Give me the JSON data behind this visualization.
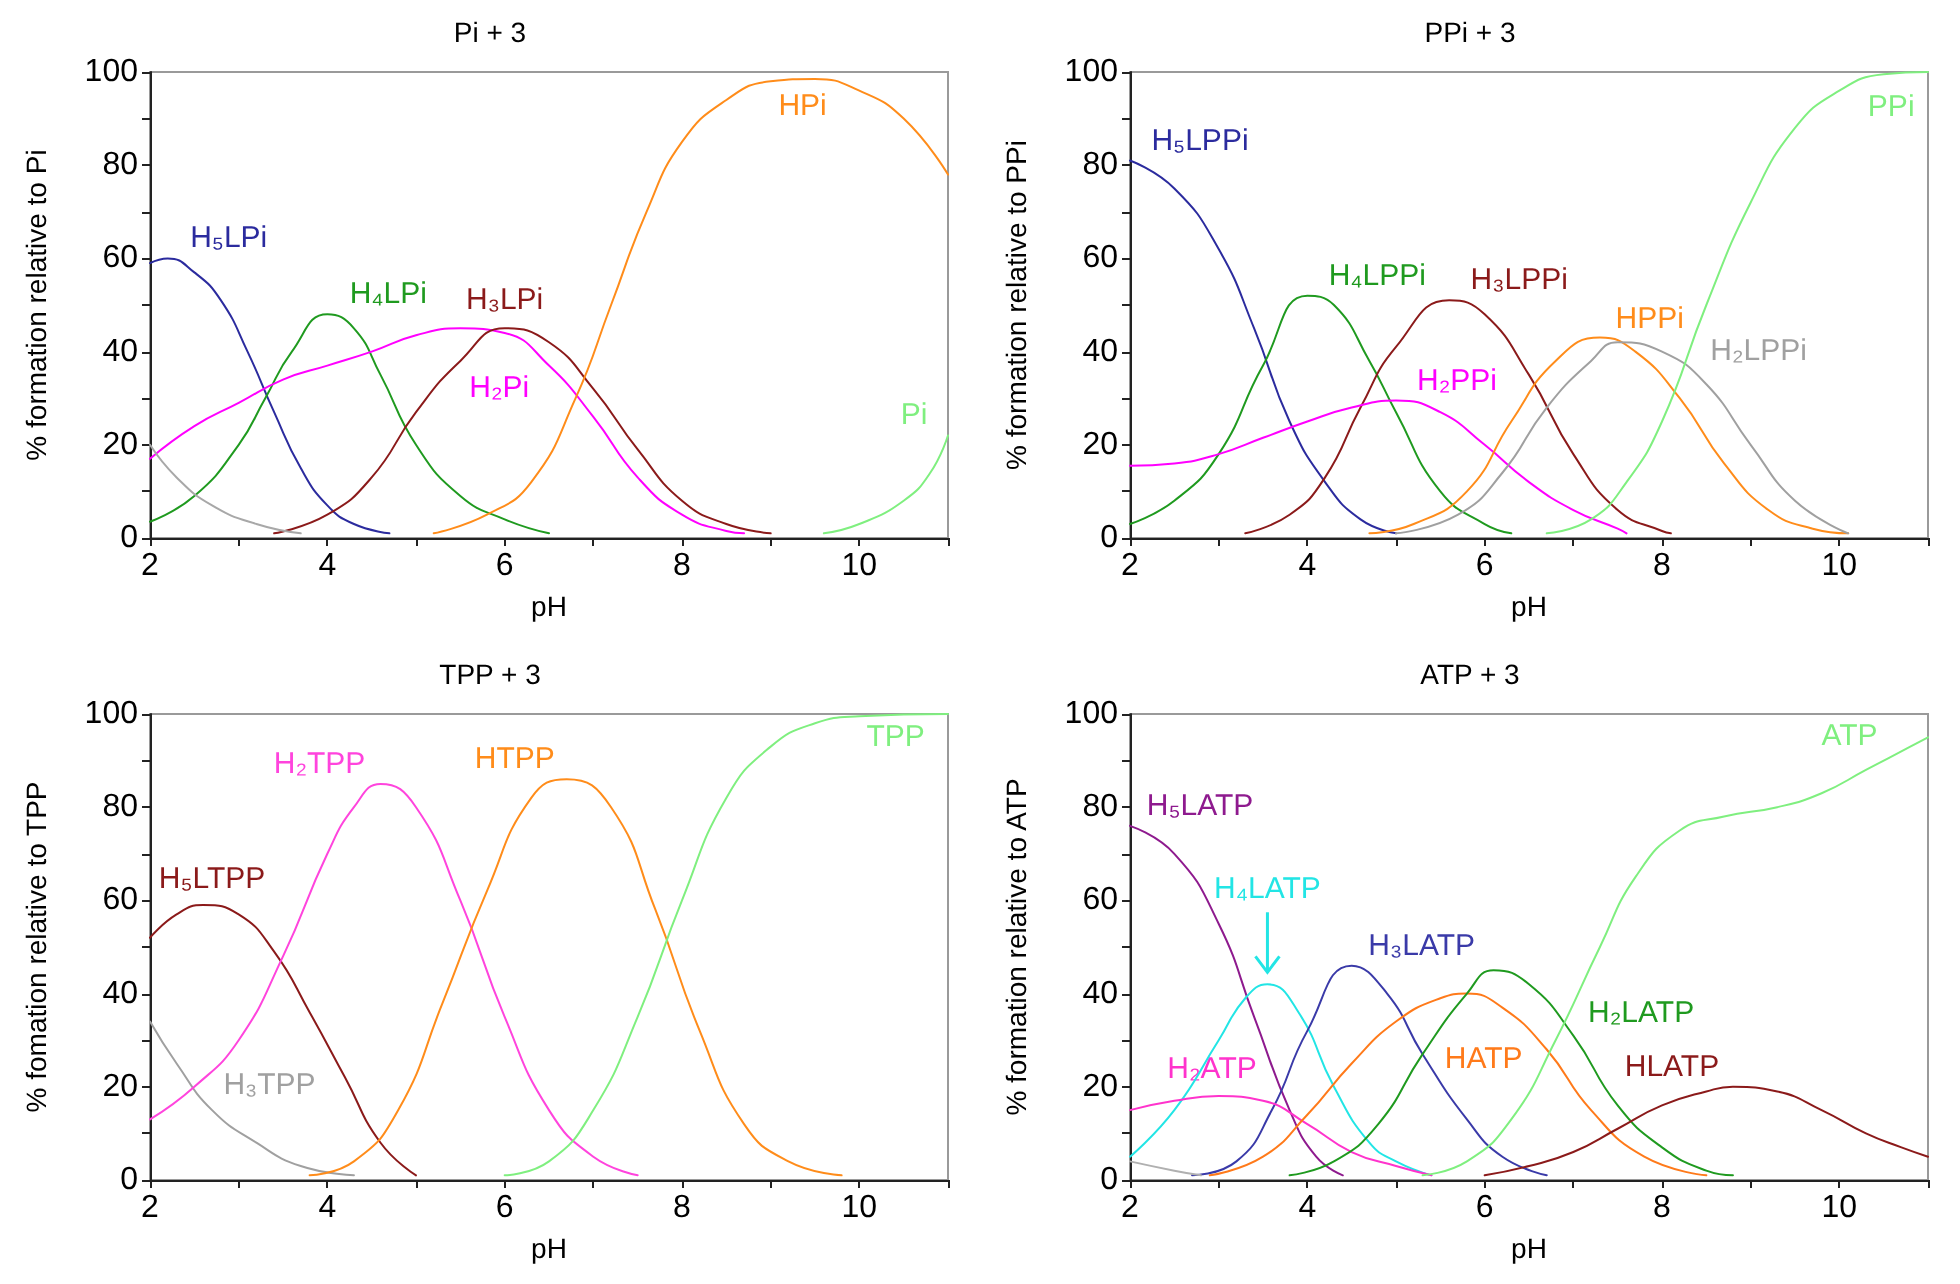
{
  "chart_data": [
    {
      "type": "line",
      "title": "Pi + 3",
      "xlabel": "pH",
      "ylabel": "% formation relative to Pi",
      "xlim": [
        2,
        11
      ],
      "ylim": [
        0,
        100
      ],
      "xticks": [
        2,
        {
          "value": 3,
          "label": null
        },
        4,
        {
          "value": 5,
          "label": null
        },
        6,
        {
          "value": 7,
          "label": null
        },
        8,
        {
          "value": 9,
          "label": null
        },
        10,
        {
          "value": 11,
          "label": null
        }
      ],
      "yticks": [
        0,
        {
          "value": 10,
          "label": null
        },
        20,
        {
          "value": 30,
          "label": null
        },
        40,
        {
          "value": 50,
          "label": null
        },
        60,
        {
          "value": 70,
          "label": null
        },
        80,
        {
          "value": 90,
          "label": null
        },
        100
      ],
      "grid": false,
      "legend": false,
      "marker": "none",
      "line_style": "solid",
      "series": [
        {
          "name": "H₅LPi",
          "color": "#2b2b9e",
          "x": [
            2,
            2.2,
            2.5,
            2.8,
            3.1,
            3.4,
            3.7,
            4.0,
            4.3,
            4.7
          ],
          "values": [
            59,
            60,
            57,
            51,
            40,
            27,
            15,
            7,
            3,
            1
          ]
        },
        {
          "name": "H₄LPi",
          "color": "#1f9a1f",
          "x": [
            2,
            2.5,
            3,
            3.3,
            3.6,
            4,
            4.3,
            4.6,
            5,
            5.5,
            6,
            6.5
          ],
          "values": [
            3.5,
            9,
            20,
            30,
            40,
            48,
            45,
            35,
            20,
            9,
            4,
            1
          ]
        },
        {
          "name": "H₂Pi",
          "color": "#ff00ff",
          "x": [
            2,
            2.5,
            3,
            3.5,
            4,
            4.5,
            5,
            5.5,
            6,
            6.5,
            7,
            7.5,
            8,
            8.5,
            8.7
          ],
          "values": [
            17,
            24,
            29,
            34,
            37,
            40,
            43.5,
            45,
            44,
            37,
            26,
            13,
            5,
            1.5,
            1
          ]
        },
        {
          "name": "H₃LPi",
          "color": "#8b1a1a",
          "x": [
            3.4,
            4,
            4.5,
            5,
            5.5,
            6,
            6.5,
            7,
            7.5,
            8,
            8.5,
            9
          ],
          "values": [
            1,
            5,
            13,
            27,
            38,
            45,
            42,
            32,
            19,
            8,
            3,
            1
          ]
        },
        {
          "name": "HPi",
          "color": "#ff8c1a",
          "x": [
            5.2,
            5.8,
            6.3,
            6.8,
            7.2,
            7.6,
            8,
            8.5,
            9,
            9.5,
            10,
            10.5,
            11
          ],
          "values": [
            1,
            5,
            12,
            30,
            50,
            70,
            85,
            94,
            98,
            98.5,
            96,
            90,
            78
          ]
        },
        {
          "name": "Pi",
          "color": "#7fef7f",
          "x": [
            9.6,
            10,
            10.5,
            10.8,
            11
          ],
          "values": [
            1,
            3,
            8,
            14,
            22
          ]
        },
        {
          "color": "#a8a8a8",
          "x": [
            2,
            2.3,
            2.7,
            3.2,
            3.7
          ],
          "values": [
            20,
            13,
            7,
            3,
            1
          ]
        }
      ]
    },
    {
      "type": "line",
      "title": "PPi + 3",
      "xlabel": "pH",
      "ylabel": "% formation relative to PPi",
      "xlim": [
        2,
        11
      ],
      "ylim": [
        0,
        100
      ],
      "xticks": [
        2,
        {
          "value": 3,
          "label": null
        },
        4,
        {
          "value": 5,
          "label": null
        },
        6,
        {
          "value": 7,
          "label": null
        },
        8,
        {
          "value": 9,
          "label": null
        },
        10,
        {
          "value": 11,
          "label": null
        }
      ],
      "yticks": [
        0,
        {
          "value": 10,
          "label": null
        },
        20,
        {
          "value": 30,
          "label": null
        },
        40,
        {
          "value": 50,
          "label": null
        },
        60,
        {
          "value": 70,
          "label": null
        },
        80,
        {
          "value": 90,
          "label": null
        },
        100
      ],
      "grid": false,
      "legend": false,
      "marker": "none",
      "line_style": "solid",
      "series": [
        {
          "name": "H₅LPPi",
          "color": "#2b2b9e",
          "x": [
            2,
            2.5,
            3,
            3.4,
            3.8,
            4.2,
            4.6,
            5
          ],
          "values": [
            81,
            75,
            62,
            45,
            25,
            12,
            4,
            1
          ]
        },
        {
          "name": "H₄LPPi",
          "color": "#1f9a1f",
          "x": [
            2,
            2.5,
            3,
            3.5,
            4,
            4.3,
            4.7,
            5,
            5.5,
            6,
            6.3
          ],
          "values": [
            3,
            8,
            18,
            37,
            52,
            50,
            38,
            27,
            10,
            3,
            1
          ]
        },
        {
          "name": "H₃LPPi",
          "color": "#8b1a1a",
          "x": [
            3.3,
            3.8,
            4.2,
            4.6,
            5,
            5.6,
            6,
            6.5,
            7,
            7.5,
            8,
            8.1
          ],
          "values": [
            1,
            5,
            13,
            28,
            41,
            51,
            48,
            35,
            18,
            6,
            1.5,
            1
          ]
        },
        {
          "name": "H₂PPi",
          "color": "#ff00ff",
          "x": [
            2,
            2.5,
            3,
            3.5,
            4,
            4.5,
            5,
            5.5,
            6,
            6.5,
            7,
            7.5,
            7.6
          ],
          "values": [
            15.5,
            16,
            18,
            21.5,
            25,
            28,
            29.5,
            27,
            20,
            12,
            6,
            2,
            1
          ]
        },
        {
          "name": "HPPi",
          "color": "#ff8c1a",
          "x": [
            4.7,
            5.2,
            5.8,
            6.3,
            6.8,
            7.3,
            7.7,
            8.2,
            8.7,
            9.2,
            9.7,
            10.1
          ],
          "values": [
            1,
            3,
            10,
            25,
            38,
            43,
            40,
            30,
            16,
            6,
            2,
            1
          ]
        },
        {
          "name": "H₂LPPi",
          "color": "#a0a0a0",
          "x": [
            5,
            5.7,
            6.2,
            6.7,
            7.2,
            7.5,
            8,
            8.5,
            9,
            9.5,
            10.1
          ],
          "values": [
            1,
            5,
            14,
            28,
            38,
            42,
            40,
            33,
            20,
            8,
            1
          ]
        },
        {
          "name": "PPi",
          "color": "#7fef7f",
          "x": [
            6.7,
            7.2,
            7.6,
            8,
            8.5,
            9,
            9.5,
            10,
            10.5,
            11
          ],
          "values": [
            1,
            4,
            12,
            25,
            50,
            72,
            88,
            96,
            99.5,
            100
          ]
        }
      ]
    },
    {
      "type": "line",
      "title": "TPP + 3",
      "xlabel": "pH",
      "ylabel": "% fomation relative to TPP",
      "xlim": [
        2,
        11
      ],
      "ylim": [
        0,
        100
      ],
      "xticks": [
        2,
        {
          "value": 3,
          "label": null
        },
        4,
        {
          "value": 5,
          "label": null
        },
        6,
        {
          "value": 7,
          "label": null
        },
        8,
        {
          "value": 9,
          "label": null
        },
        10,
        {
          "value": 11,
          "label": null
        }
      ],
      "yticks": [
        0,
        {
          "value": 10,
          "label": null
        },
        20,
        {
          "value": 30,
          "label": null
        },
        40,
        {
          "value": 50,
          "label": null
        },
        60,
        {
          "value": 70,
          "label": null
        },
        80,
        {
          "value": 90,
          "label": null
        },
        100
      ],
      "grid": false,
      "legend": false,
      "marker": "none",
      "line_style": "solid",
      "series": [
        {
          "name": "H₅LTPP",
          "color": "#8b1a1a",
          "x": [
            2,
            2.3,
            2.6,
            3,
            3.4,
            3.8,
            4.2,
            4.6,
            5
          ],
          "values": [
            52,
            57,
            59,
            57,
            49,
            36,
            22,
            8,
            1
          ]
        },
        {
          "name": "H₃TPP",
          "color": "#a0a0a0",
          "x": [
            2,
            2.3,
            2.7,
            3.2,
            3.7,
            4.3
          ],
          "values": [
            34,
            25,
            15,
            8,
            3,
            1
          ]
        },
        {
          "name": "H₂TPP",
          "color": "#ff44dd",
          "x": [
            2,
            2.5,
            3,
            3.5,
            4,
            4.3,
            4.6,
            5,
            5.5,
            6,
            6.5,
            7,
            7.5
          ],
          "values": [
            13,
            20,
            30,
            48,
            70,
            80,
            85,
            80,
            60,
            35,
            15,
            5,
            1
          ]
        },
        {
          "name": "HTPP",
          "color": "#ff8c1a",
          "x": [
            3.8,
            4.3,
            4.8,
            5.3,
            5.8,
            6.3,
            6.7,
            7.2,
            7.7,
            8.2,
            8.7,
            9.2,
            9.8
          ],
          "values": [
            1,
            4,
            15,
            38,
            62,
            82,
            86,
            80,
            58,
            32,
            12,
            4,
            1
          ]
        },
        {
          "name": "TPP",
          "color": "#7fef7f",
          "x": [
            6,
            6.5,
            7,
            7.5,
            8,
            8.5,
            9,
            9.5,
            10,
            11
          ],
          "values": [
            1,
            4,
            15,
            35,
            60,
            82,
            93,
            98,
            99.5,
            100
          ]
        }
      ]
    },
    {
      "type": "line",
      "title": "ATP + 3",
      "xlabel": "pH",
      "ylabel": "% formation relative to ATP",
      "xlim": [
        2,
        11
      ],
      "ylim": [
        0,
        100
      ],
      "xticks": [
        2,
        {
          "value": 3,
          "label": null
        },
        4,
        {
          "value": 5,
          "label": null
        },
        6,
        {
          "value": 7,
          "label": null
        },
        8,
        {
          "value": 9,
          "label": null
        },
        10,
        {
          "value": 11,
          "label": null
        }
      ],
      "yticks": [
        0,
        {
          "value": 10,
          "label": null
        },
        20,
        {
          "value": 30,
          "label": null
        },
        40,
        {
          "value": 50,
          "label": null
        },
        60,
        {
          "value": 70,
          "label": null
        },
        80,
        {
          "value": 90,
          "label": null
        },
        100
      ],
      "grid": false,
      "legend": false,
      "marker": "none",
      "line_style": "solid",
      "annotations": [
        {
          "text": "H₄LATP",
          "x": 3.55,
          "y": 42
        }
      ],
      "series": [
        {
          "name": "H₅LATP",
          "color": "#8e1a8e",
          "x": [
            2,
            2.5,
            3,
            3.4,
            3.8,
            4.1,
            4.4
          ],
          "values": [
            76,
            70,
            55,
            35,
            15,
            5,
            1
          ]
        },
        {
          "color": "#22e5e5",
          "x": [
            2,
            2.5,
            3,
            3.3,
            3.55,
            3.9,
            4.3,
            4.7,
            5,
            5.4
          ],
          "values": [
            5,
            15,
            30,
            39,
            42,
            36,
            20,
            8,
            4,
            1
          ]
        },
        {
          "name": "H₃LATP",
          "color": "#3a3aa8",
          "x": [
            2.7,
            3.2,
            3.6,
            4,
            4.5,
            4.9,
            5.3,
            5.8,
            6.2,
            6.7
          ],
          "values": [
            1,
            4,
            15,
            32,
            46,
            40,
            27,
            13,
            5,
            1
          ]
        },
        {
          "name": "H₂ATP",
          "color": "#ff33cc",
          "x": [
            2,
            2.5,
            3,
            3.5,
            4,
            4.5,
            5,
            5.4
          ],
          "values": [
            15,
            17,
            18,
            17,
            12,
            6,
            3,
            1
          ]
        },
        {
          "name": "HATP",
          "color": "#ff7a1a",
          "x": [
            2.9,
            3.5,
            4,
            4.5,
            5,
            5.5,
            5.8,
            6.2,
            6.7,
            7.2,
            7.8,
            8.5
          ],
          "values": [
            1,
            5,
            14,
            25,
            34,
            39,
            40,
            37,
            28,
            15,
            5,
            1
          ]
        },
        {
          "name": "H₂LATP",
          "color": "#1f9a1f",
          "x": [
            3.8,
            4.3,
            4.8,
            5.3,
            5.8,
            6.1,
            6.5,
            7,
            7.5,
            8,
            8.5,
            8.8
          ],
          "values": [
            1,
            4,
            12,
            27,
            40,
            45,
            42,
            31,
            16,
            7,
            2,
            1
          ]
        },
        {
          "name": "ATP",
          "color": "#7fef7f",
          "x": [
            5.3,
            5.8,
            6.3,
            6.8,
            7.3,
            7.7,
            8.2,
            8.7,
            9.3,
            9.8,
            10.3,
            10.8,
            11
          ],
          "values": [
            1,
            4,
            13,
            30,
            50,
            65,
            75,
            78,
            80,
            83,
            88,
            93,
            95
          ]
        },
        {
          "name": "HLATP",
          "color": "#8b1a1a",
          "x": [
            6,
            6.5,
            7,
            7.5,
            8,
            8.5,
            8.8,
            9.3,
            9.8,
            10.3,
            10.7,
            11
          ],
          "values": [
            1,
            3,
            6,
            11,
            16,
            19,
            20,
            19,
            15,
            10,
            7,
            5
          ]
        },
        {
          "color": "#b0b0b0",
          "x": [
            2,
            2.5,
            2.8
          ],
          "values": [
            4,
            2,
            1
          ]
        }
      ]
    }
  ]
}
